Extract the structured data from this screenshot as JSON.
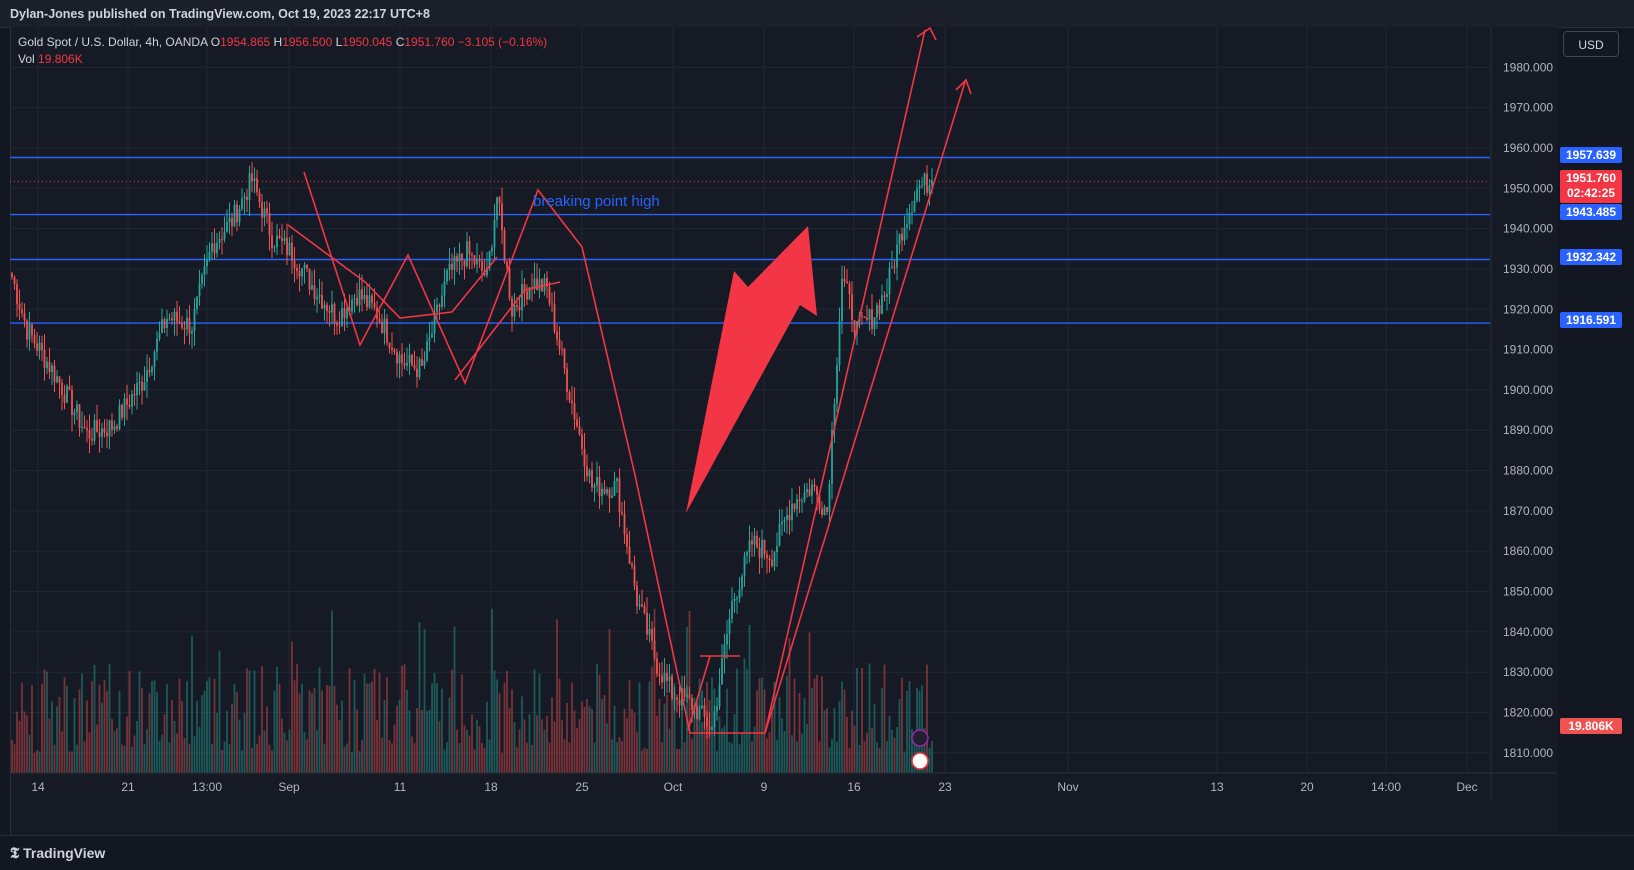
{
  "header": {
    "publisher": "Dylan-Jones published on TradingView.com, Oct 19, 2023 22:17 UTC+8"
  },
  "legend": {
    "symbol": "Gold Spot / U.S. Dollar, 4h, OANDA",
    "o_label": "O",
    "o": "1954.865",
    "h_label": "H",
    "h": "1956.500",
    "l_label": "L",
    "l": "1950.045",
    "c_label": "C",
    "c": "1951.760",
    "change": "−3.105 (−0.16%)",
    "vol_label": "Vol",
    "vol": "19.806K"
  },
  "currency_button": "USD",
  "annotation": "breaking point high",
  "price_tags": {
    "r1": "1957.639",
    "current": "1951.760",
    "countdown": "02:42:25",
    "r2": "1943.485",
    "r3": "1932.342",
    "r4": "1916.591",
    "volume": "19.806K"
  },
  "footer": {
    "logo": "TradingView"
  },
  "colors": {
    "up": "#26a69a",
    "down": "#ef5350",
    "level": "#2962ff",
    "drawing": "#f23645",
    "bg": "#161a25"
  },
  "chart_data": {
    "type": "candlestick",
    "y_axis": {
      "min": 1805,
      "max": 1990,
      "ticks": [
        1810,
        1820,
        1830,
        1840,
        1850,
        1860,
        1870,
        1880,
        1890,
        1900,
        1910,
        1920,
        1930,
        1940,
        1950,
        1960,
        1970,
        1980
      ]
    },
    "x_ticks": [
      "14",
      "21",
      "13:00",
      "Sep",
      "11",
      "18",
      "25",
      "Oct",
      "9",
      "16",
      "23",
      "Nov",
      "13",
      "20",
      "14:00",
      "Dec"
    ],
    "horizontal_levels": [
      1957.639,
      1943.485,
      1932.342,
      1916.591
    ],
    "current_price": 1951.76,
    "anchors": [
      [
        0,
        1928
      ],
      [
        6,
        1915
      ],
      [
        18,
        1903
      ],
      [
        30,
        1889
      ],
      [
        40,
        1891
      ],
      [
        52,
        1902
      ],
      [
        62,
        1918
      ],
      [
        72,
        1916
      ],
      [
        80,
        1936
      ],
      [
        88,
        1942
      ],
      [
        96,
        1952
      ],
      [
        104,
        1938
      ],
      [
        112,
        1934
      ],
      [
        120,
        1926
      ],
      [
        130,
        1918
      ],
      [
        138,
        1924
      ],
      [
        146,
        1919
      ],
      [
        156,
        1907
      ],
      [
        164,
        1905
      ],
      [
        174,
        1928
      ],
      [
        182,
        1934
      ],
      [
        190,
        1928
      ],
      [
        194,
        1948
      ],
      [
        200,
        1920
      ],
      [
        208,
        1927
      ],
      [
        214,
        1925
      ],
      [
        222,
        1902
      ],
      [
        232,
        1876
      ],
      [
        242,
        1876
      ],
      [
        250,
        1848
      ],
      [
        258,
        1832
      ],
      [
        264,
        1825
      ],
      [
        272,
        1822
      ],
      [
        280,
        1816
      ],
      [
        288,
        1847
      ],
      [
        296,
        1862
      ],
      [
        304,
        1859
      ],
      [
        312,
        1872
      ],
      [
        320,
        1876
      ],
      [
        326,
        1870
      ],
      [
        332,
        1928
      ],
      [
        338,
        1915
      ],
      [
        344,
        1918
      ],
      [
        350,
        1925
      ],
      [
        356,
        1940
      ],
      [
        362,
        1950
      ],
      [
        368,
        1952
      ]
    ]
  }
}
